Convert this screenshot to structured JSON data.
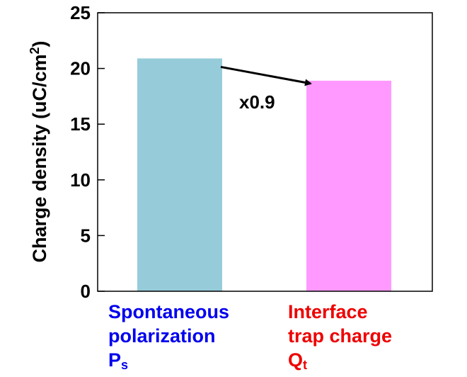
{
  "chart_data": {
    "type": "bar",
    "ylabel": "Charge density (uC/cm",
    "ylabel_sup": "2",
    "ylabel_end": ")",
    "ylim": [
      0,
      25
    ],
    "yticks": [
      "0",
      "5",
      "10",
      "15",
      "20",
      "25"
    ],
    "grid": false,
    "categories": [
      {
        "line1": "Spontaneous",
        "line2": "polarization",
        "symbol": "P",
        "subscript": "s"
      },
      {
        "line1": "Interface",
        "line2": "trap charge",
        "symbol": "Q",
        "subscript": "t"
      }
    ],
    "values": [
      20.9,
      18.9
    ],
    "bar_colors": [
      "#96CCDA",
      "#FF99FF"
    ],
    "label_colors": [
      "#0000EE",
      "#EE0000"
    ],
    "annotation": "x0.9"
  }
}
